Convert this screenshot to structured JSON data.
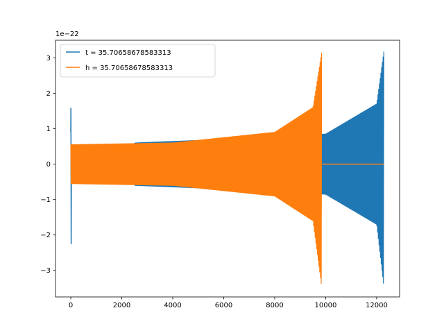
{
  "chart_data": {
    "type": "line",
    "title": "",
    "xlabel": "",
    "ylabel": "",
    "offset_label": "1e−22",
    "xlim": [
      -600,
      12900
    ],
    "ylim": [
      -3.75,
      3.5
    ],
    "x_ticks": [
      0,
      2000,
      4000,
      6000,
      8000,
      10000,
      12000
    ],
    "x_tick_labels": [
      "0",
      "2000",
      "4000",
      "6000",
      "8000",
      "10000",
      "12000"
    ],
    "y_ticks": [
      -3,
      -2,
      -1,
      0,
      1,
      2,
      3
    ],
    "y_tick_labels": [
      "−3",
      "−2",
      "−1",
      "0",
      "1",
      "2",
      "3"
    ],
    "grid": false,
    "legend_position": "top-left",
    "series": [
      {
        "name": "t = 35.70658678583313",
        "color": "#1f77b4",
        "envelope_points": [
          {
            "x": 0,
            "min": -2.25,
            "max": 1.58
          },
          {
            "x": 100,
            "min": 0,
            "max": 0
          },
          {
            "x": 2500,
            "min": -0.6,
            "max": 0.6
          },
          {
            "x": 6000,
            "min": -0.7,
            "max": 0.7
          },
          {
            "x": 10000,
            "min": -0.85,
            "max": 0.85
          },
          {
            "x": 12000,
            "min": -1.7,
            "max": 1.7
          },
          {
            "x": 12280,
            "min": -3.45,
            "max": 3.18
          }
        ]
      },
      {
        "name": "h = 35.70658678583313",
        "color": "#ff7f0e",
        "envelope_points": [
          {
            "x": 0,
            "min": -0.55,
            "max": 0.55
          },
          {
            "x": 4000,
            "min": -0.6,
            "max": 0.6
          },
          {
            "x": 8000,
            "min": -0.9,
            "max": 0.9
          },
          {
            "x": 9500,
            "min": -1.6,
            "max": 1.6
          },
          {
            "x": 9840,
            "min": -3.45,
            "max": 3.15
          },
          {
            "x": 12280,
            "min": 0,
            "max": 0
          }
        ]
      }
    ]
  }
}
